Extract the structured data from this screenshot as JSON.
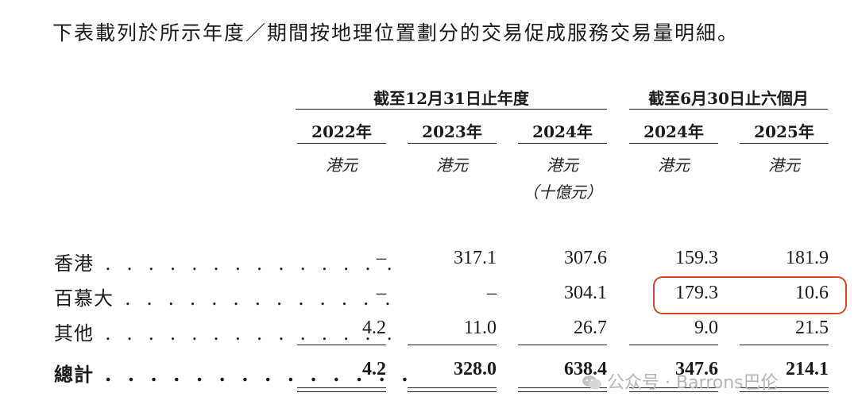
{
  "intro_text": "下表載列於所示年度／期間按地理位置劃分的交易促成服務交易量明細。",
  "header": {
    "group1_label": "截至12月31日止年度",
    "group2_label": "截至6月30日止六個月",
    "years": [
      "2022年",
      "2023年",
      "2024年",
      "2024年",
      "2025年"
    ],
    "units": [
      "港元",
      "港元",
      "港元",
      "港元",
      "港元"
    ],
    "unit_note": "（十億元）"
  },
  "rows": [
    {
      "label": "香港",
      "dots": ". . . . . . . . . . . . . .",
      "values": [
        "–",
        "317.1",
        "307.6",
        "159.3",
        "181.9"
      ]
    },
    {
      "label": "百慕大",
      "dots": ". . . . . . . . . . . . .",
      "values": [
        "–",
        "–",
        "304.1",
        "179.3",
        "10.6"
      ]
    },
    {
      "label": "其他",
      "dots": ". . . . . . . . . . . . . .",
      "values": [
        "4.2",
        "11.0",
        "26.7",
        "9.0",
        "21.5"
      ]
    }
  ],
  "total": {
    "label": "總計",
    "dots": ". . . . . . . . . . . . . .",
    "values": [
      "4.2",
      "328.0",
      "638.4",
      "347.6",
      "214.1"
    ]
  },
  "watermark": "公众号 · Barrons巴伦",
  "highlight_color": "#d2472a",
  "icons": {
    "watermark": "wechat-icon"
  }
}
